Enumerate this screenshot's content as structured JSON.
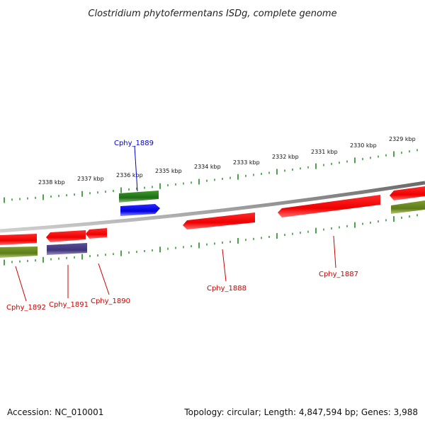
{
  "title": "Clostridium phytofermentans ISDg, complete genome",
  "footer": {
    "accession": "Accession: NC_010001",
    "summary": "Topology: circular; Length: 4,847,594 bp; Genes: 3,988"
  },
  "scale": {
    "tick_labels": [
      "2338 kbp",
      "2337 kbp",
      "2336 kbp",
      "2335 kbp",
      "2334 kbp",
      "2333 kbp",
      "2332 kbp",
      "2331 kbp",
      "2330 kbp",
      "2329 kbp"
    ]
  },
  "gene_labels": [
    {
      "text": "Cphy_1889",
      "color": "#0000cc"
    },
    {
      "text": "Cphy_1892",
      "color": "#cc0000"
    },
    {
      "text": "Cphy_1891",
      "color": "#cc0000"
    },
    {
      "text": "Cphy_1890",
      "color": "#cc0000"
    },
    {
      "text": "Cphy_1888",
      "color": "#cc0000"
    },
    {
      "text": "Cphy_1887",
      "color": "#cc0000"
    }
  ],
  "colors": {
    "cds": "#ee0000",
    "rna": "#2a7a1c",
    "gene_blue": "#0000ee",
    "gene_purple": "#4a3f8a",
    "olive": "#6b8a22",
    "tick_green": "#228b22",
    "backbone": "#888888"
  }
}
